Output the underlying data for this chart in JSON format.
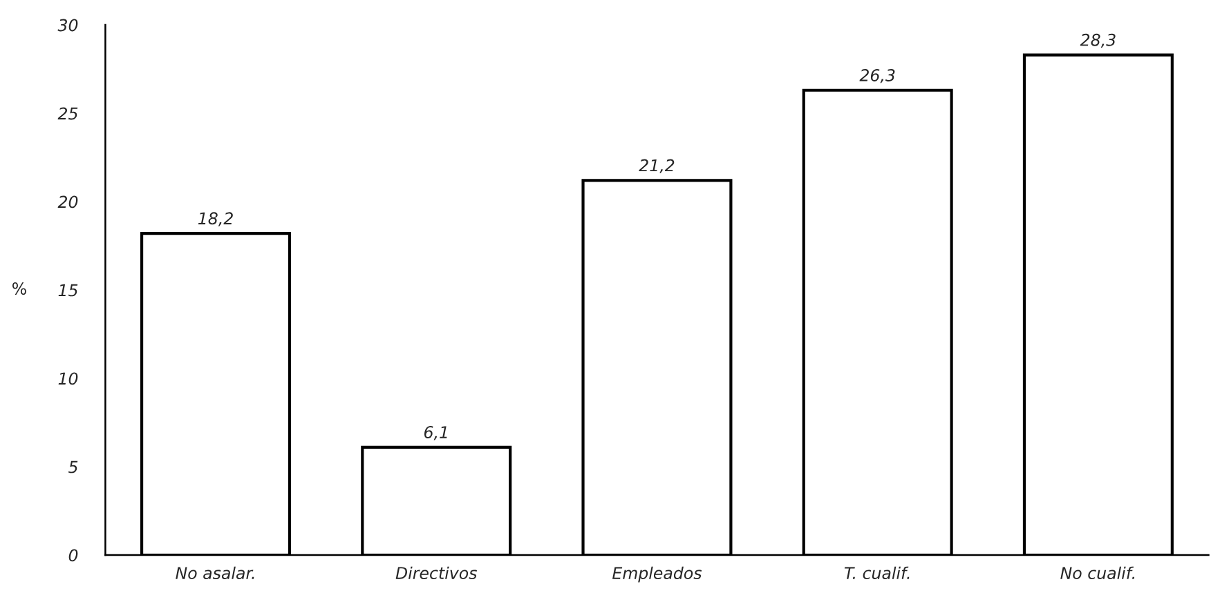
{
  "chart_data": {
    "type": "bar",
    "ylabel": "%",
    "categories": [
      "No asalar.",
      "Directivos",
      "Empleados",
      "T. cualif.",
      "No cualif."
    ],
    "values": [
      18.2,
      6.1,
      21.2,
      26.3,
      28.3
    ],
    "value_labels": [
      "18,2",
      "6,1",
      "21,2",
      "26,3",
      "28,3"
    ],
    "color": "#ffffff",
    "ylim": [
      0,
      30
    ],
    "yticks": [
      0,
      5,
      10,
      15,
      20,
      25,
      30
    ],
    "grid": false,
    "legend": false
  }
}
